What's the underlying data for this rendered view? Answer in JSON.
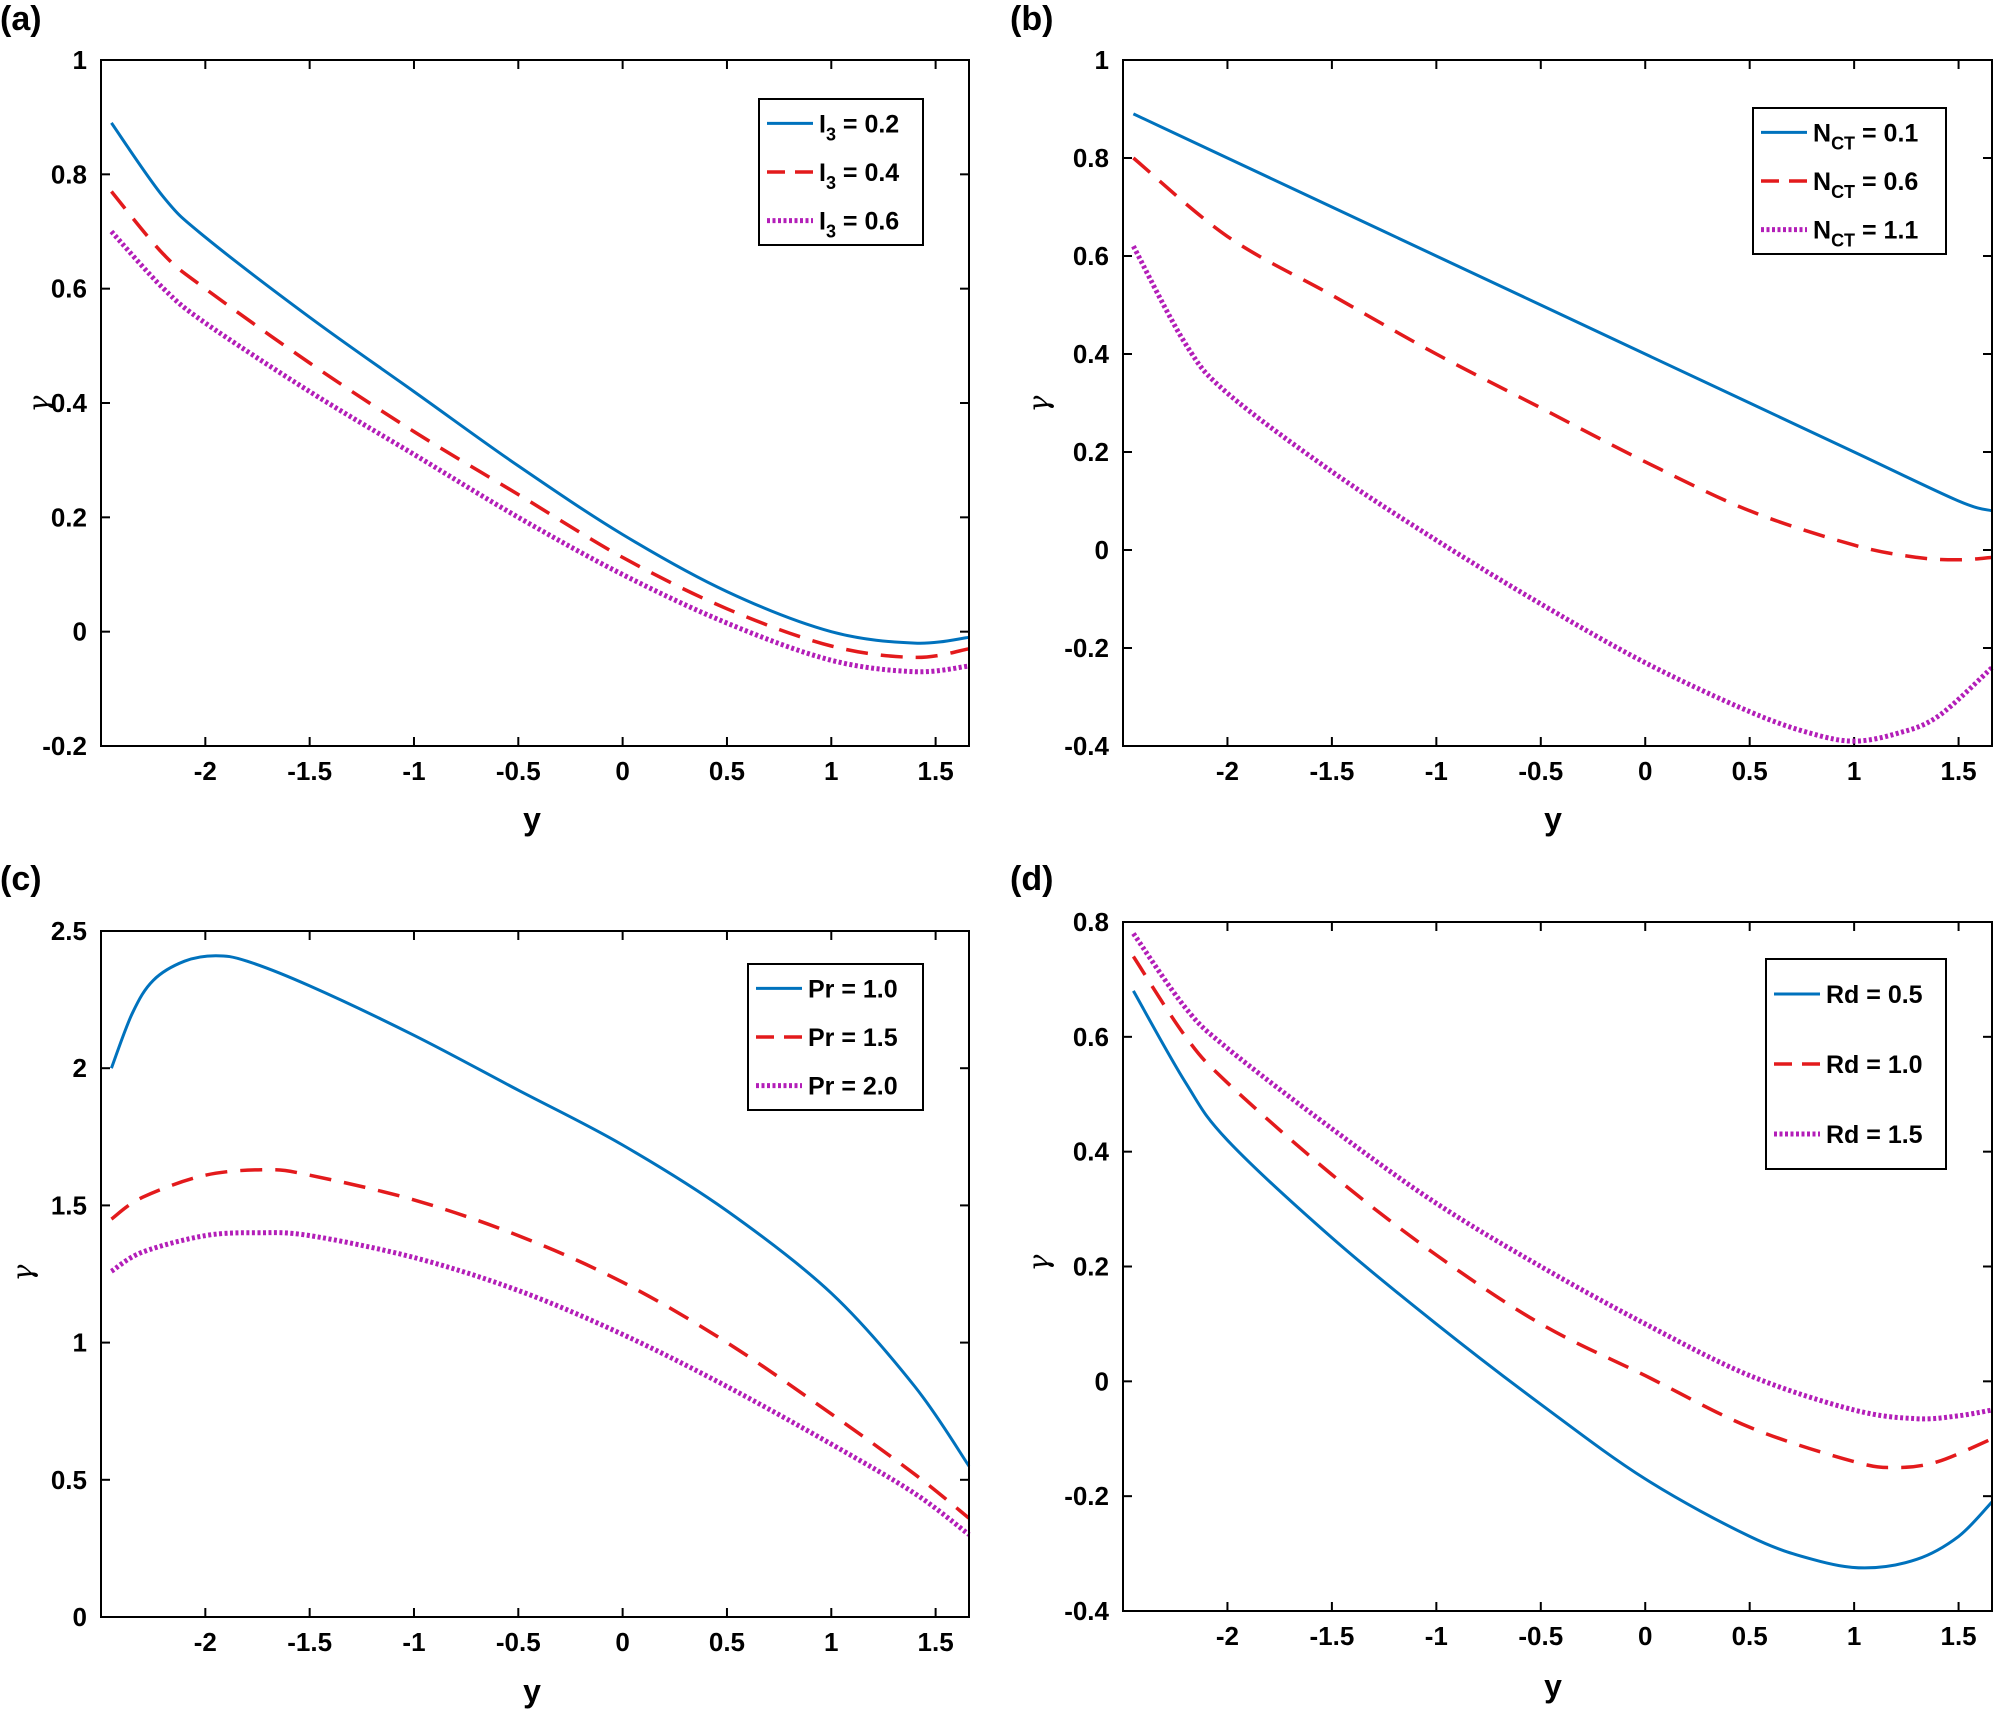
{
  "colors": {
    "series1": "#0072BD",
    "series2": "#E31A1C",
    "series3": "#B31EB8"
  },
  "chart_data": [
    {
      "type": "line",
      "panel": "(a)",
      "xlabel": "y",
      "ylabel": "γ",
      "xlim": [
        -2.5,
        1.66
      ],
      "ylim": [
        -0.2,
        1.0
      ],
      "xticks": [
        -2,
        -1.5,
        -1,
        -0.5,
        0,
        0.5,
        1,
        1.5
      ],
      "xtick_labels": [
        "-2",
        "-1.5",
        "-1",
        "-0.5",
        "0",
        "0.5",
        "1",
        "1.5"
      ],
      "yticks": [
        -0.2,
        0,
        0.2,
        0.4,
        0.6,
        0.8,
        1
      ],
      "ytick_labels": [
        "-0.2",
        "0",
        "0.2",
        "0.4",
        "0.6",
        "0.8",
        "1"
      ],
      "legend_position": "top-right",
      "series": [
        {
          "name": "I3 = 0.2",
          "legend_main": "I",
          "legend_sub": "3",
          "legend_rest": " = 0.2",
          "style": "solid",
          "x": [
            -2.45,
            -2.2,
            -2.0,
            -1.5,
            -1.0,
            -0.5,
            0.0,
            0.5,
            1.0,
            1.4,
            1.66
          ],
          "y": [
            0.89,
            0.76,
            0.69,
            0.55,
            0.42,
            0.29,
            0.17,
            0.07,
            0.0,
            -0.02,
            -0.01
          ]
        },
        {
          "name": "I3 = 0.4",
          "legend_main": "I",
          "legend_sub": "3",
          "legend_rest": " = 0.4",
          "style": "dashed",
          "x": [
            -2.45,
            -2.2,
            -2.0,
            -1.5,
            -1.0,
            -0.5,
            0.0,
            0.5,
            1.0,
            1.4,
            1.66
          ],
          "y": [
            0.77,
            0.66,
            0.6,
            0.47,
            0.35,
            0.24,
            0.13,
            0.04,
            -0.025,
            -0.045,
            -0.03
          ]
        },
        {
          "name": "I3 = 0.6",
          "legend_main": "I",
          "legend_sub": "3",
          "legend_rest": " = 0.6",
          "style": "dotted",
          "x": [
            -2.45,
            -2.2,
            -2.0,
            -1.5,
            -1.0,
            -0.5,
            0.0,
            0.5,
            1.0,
            1.4,
            1.66
          ],
          "y": [
            0.7,
            0.6,
            0.54,
            0.42,
            0.31,
            0.2,
            0.1,
            0.015,
            -0.05,
            -0.07,
            -0.06
          ]
        }
      ]
    },
    {
      "type": "line",
      "panel": "(b)",
      "xlabel": "y",
      "ylabel": "γ",
      "xlim": [
        -2.5,
        1.66
      ],
      "ylim": [
        -0.4,
        1.0
      ],
      "xticks": [
        -2,
        -1.5,
        -1,
        -0.5,
        0,
        0.5,
        1,
        1.5
      ],
      "xtick_labels": [
        "-2",
        "-1.5",
        "-1",
        "-0.5",
        "0",
        "0.5",
        "1",
        "1.5"
      ],
      "yticks": [
        -0.4,
        -0.2,
        0,
        0.2,
        0.4,
        0.6,
        0.8,
        1
      ],
      "ytick_labels": [
        "-0.4",
        "-0.2",
        "0",
        "0.2",
        "0.4",
        "0.6",
        "0.8",
        "1"
      ],
      "legend_position": "top-right",
      "series": [
        {
          "name": "NCT = 0.1",
          "legend_main": "N",
          "legend_sub": "CT",
          "legend_rest": " = 0.1",
          "style": "solid",
          "x": [
            -2.45,
            -2.0,
            -1.5,
            -1.0,
            -0.5,
            0.0,
            0.5,
            1.0,
            1.5,
            1.66
          ],
          "y": [
            0.89,
            0.8,
            0.7,
            0.6,
            0.5,
            0.4,
            0.3,
            0.2,
            0.1,
            0.08
          ]
        },
        {
          "name": "NCT = 0.6",
          "legend_main": "N",
          "legend_sub": "CT",
          "legend_rest": " = 0.6",
          "style": "dashed",
          "x": [
            -2.45,
            -2.0,
            -1.5,
            -1.0,
            -0.5,
            0.0,
            0.5,
            1.0,
            1.3,
            1.5,
            1.66
          ],
          "y": [
            0.8,
            0.64,
            0.52,
            0.4,
            0.29,
            0.18,
            0.08,
            0.01,
            -0.015,
            -0.02,
            -0.015
          ]
        },
        {
          "name": "NCT = 1.1",
          "legend_main": "N",
          "legend_sub": "CT",
          "legend_rest": " = 1.1",
          "style": "dotted",
          "x": [
            -2.45,
            -2.2,
            -2.0,
            -1.5,
            -1.0,
            -0.5,
            0.0,
            0.5,
            0.8,
            1.0,
            1.2,
            1.4,
            1.66
          ],
          "y": [
            0.62,
            0.42,
            0.32,
            0.16,
            0.02,
            -0.11,
            -0.23,
            -0.33,
            -0.375,
            -0.39,
            -0.375,
            -0.34,
            -0.24
          ]
        }
      ]
    },
    {
      "type": "line",
      "panel": "(c)",
      "xlabel": "y",
      "ylabel": "γ",
      "xlim": [
        -2.5,
        1.66
      ],
      "ylim": [
        0,
        2.5
      ],
      "xticks": [
        -2,
        -1.5,
        -1,
        -0.5,
        0,
        0.5,
        1,
        1.5
      ],
      "xtick_labels": [
        "-2",
        "-1.5",
        "-1",
        "-0.5",
        "0",
        "0.5",
        "1",
        "1.5"
      ],
      "yticks": [
        0,
        0.5,
        1,
        1.5,
        2,
        2.5
      ],
      "ytick_labels": [
        "0",
        "0.5",
        "1",
        "1.5",
        "2",
        "2.5"
      ],
      "legend_position": "top-right",
      "series": [
        {
          "name": "Pr = 1.0",
          "legend_main": "Pr = 1.0",
          "legend_sub": "",
          "legend_rest": "",
          "style": "solid",
          "x": [
            -2.45,
            -2.35,
            -2.25,
            -2.1,
            -1.95,
            -1.8,
            -1.5,
            -1.0,
            -0.5,
            0.0,
            0.5,
            1.0,
            1.4,
            1.66
          ],
          "y": [
            2.0,
            2.2,
            2.32,
            2.39,
            2.41,
            2.39,
            2.3,
            2.12,
            1.92,
            1.72,
            1.48,
            1.18,
            0.84,
            0.55
          ]
        },
        {
          "name": "Pr = 1.5",
          "legend_main": "Pr = 1.5",
          "legend_sub": "",
          "legend_rest": "",
          "style": "dashed",
          "x": [
            -2.45,
            -2.3,
            -2.0,
            -1.7,
            -1.5,
            -1.0,
            -0.5,
            0.0,
            0.5,
            1.0,
            1.4,
            1.66
          ],
          "y": [
            1.45,
            1.53,
            1.61,
            1.63,
            1.61,
            1.52,
            1.39,
            1.22,
            1.0,
            0.74,
            0.52,
            0.36
          ]
        },
        {
          "name": "Pr = 2.0",
          "legend_main": "Pr = 2.0",
          "legend_sub": "",
          "legend_rest": "",
          "style": "dotted",
          "x": [
            -2.45,
            -2.3,
            -2.0,
            -1.75,
            -1.5,
            -1.0,
            -0.5,
            0.0,
            0.5,
            1.0,
            1.4,
            1.66
          ],
          "y": [
            1.26,
            1.33,
            1.39,
            1.4,
            1.39,
            1.31,
            1.19,
            1.03,
            0.84,
            0.63,
            0.45,
            0.3
          ]
        }
      ]
    },
    {
      "type": "line",
      "panel": "(d)",
      "xlabel": "y",
      "ylabel": "γ",
      "xlim": [
        -2.5,
        1.66
      ],
      "ylim": [
        -0.4,
        0.8
      ],
      "xticks": [
        -2,
        -1.5,
        -1,
        -0.5,
        0,
        0.5,
        1,
        1.5
      ],
      "xtick_labels": [
        "-2",
        "-1.5",
        "-1",
        "-0.5",
        "0",
        "0.5",
        "1",
        "1.5"
      ],
      "yticks": [
        -0.4,
        -0.2,
        0,
        0.2,
        0.4,
        0.6,
        0.8
      ],
      "ytick_labels": [
        "-0.4",
        "-0.2",
        "0",
        "0.2",
        "0.4",
        "0.6",
        "0.8"
      ],
      "legend_position": "top-right",
      "series": [
        {
          "name": "Rd = 0.5",
          "legend_main": "Rd = 0.5",
          "legend_sub": "",
          "legend_rest": "",
          "style": "solid",
          "x": [
            -2.45,
            -2.2,
            -2.0,
            -1.5,
            -1.0,
            -0.5,
            0.0,
            0.5,
            0.8,
            1.05,
            1.3,
            1.5,
            1.66
          ],
          "y": [
            0.68,
            0.52,
            0.42,
            0.25,
            0.1,
            -0.04,
            -0.17,
            -0.27,
            -0.31,
            -0.325,
            -0.31,
            -0.27,
            -0.21
          ]
        },
        {
          "name": "Rd = 1.0",
          "legend_main": "Rd = 1.0",
          "legend_sub": "",
          "legend_rest": "",
          "style": "dashed",
          "x": [
            -2.45,
            -2.2,
            -2.0,
            -1.5,
            -1.0,
            -0.5,
            0.0,
            0.5,
            1.0,
            1.2,
            1.4,
            1.66
          ],
          "y": [
            0.74,
            0.6,
            0.52,
            0.36,
            0.22,
            0.1,
            0.01,
            -0.08,
            -0.14,
            -0.15,
            -0.14,
            -0.1
          ]
        },
        {
          "name": "Rd = 1.5",
          "legend_main": "Rd = 1.5",
          "legend_sub": "",
          "legend_rest": "",
          "style": "dotted",
          "x": [
            -2.45,
            -2.2,
            -2.0,
            -1.5,
            -1.0,
            -0.5,
            0.0,
            0.5,
            1.0,
            1.3,
            1.5,
            1.66
          ],
          "y": [
            0.78,
            0.65,
            0.58,
            0.44,
            0.31,
            0.2,
            0.1,
            0.01,
            -0.05,
            -0.065,
            -0.06,
            -0.05
          ]
        }
      ]
    }
  ]
}
